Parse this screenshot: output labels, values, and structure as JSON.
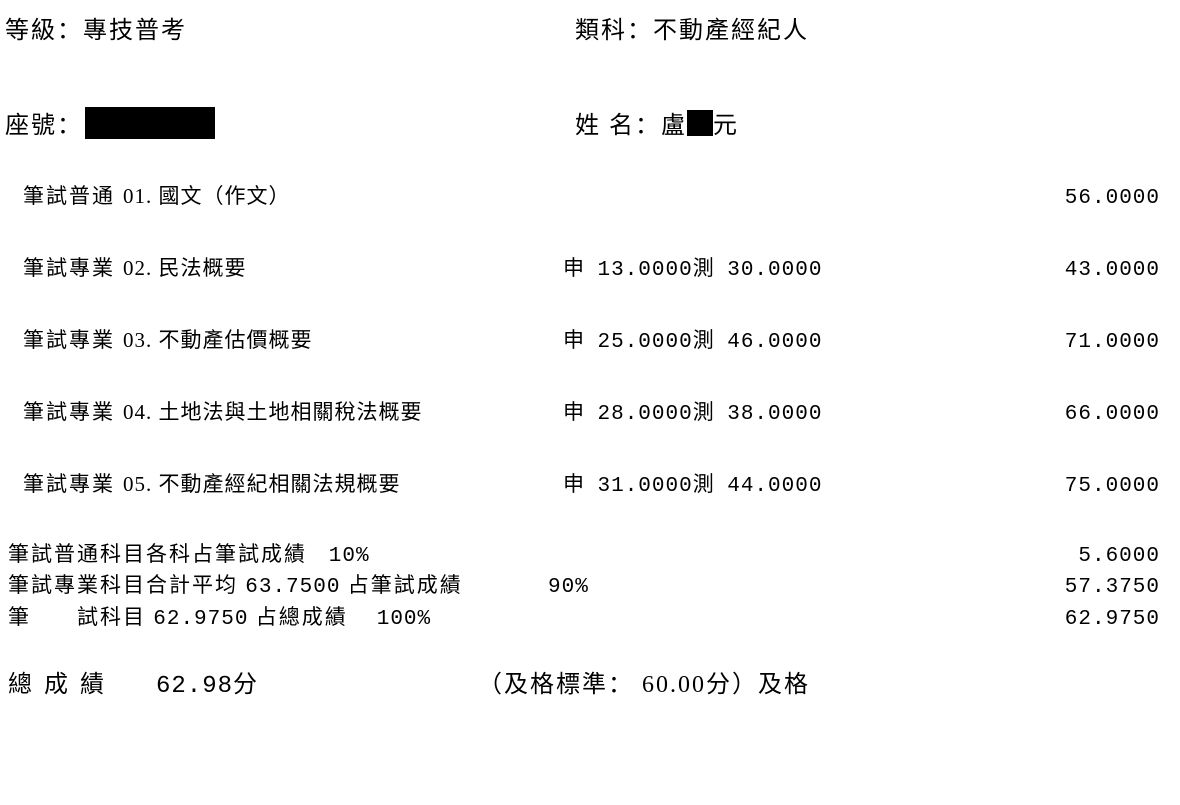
{
  "header": {
    "level_label": "等級：",
    "level_value": "專技普考",
    "category_label": "類科：",
    "category_value": "不動產經紀人"
  },
  "info": {
    "seat_label": "座號：",
    "name_label": "姓 名：",
    "name_surname": "盧",
    "name_given": "元"
  },
  "subjects": [
    {
      "category": "筆試普通",
      "code_name": "01. 國文（作文）",
      "shen_label": "",
      "shen_score": "",
      "ce_label": "",
      "ce_score": "",
      "total": "56.0000"
    },
    {
      "category": "筆試專業",
      "code_name": "02. 民法概要",
      "shen_label": "申",
      "shen_score": "13.0000",
      "ce_label": "測",
      "ce_score": "30.0000",
      "total": "43.0000"
    },
    {
      "category": "筆試專業",
      "code_name": "03. 不動產估價概要",
      "shen_label": "申",
      "shen_score": "25.0000",
      "ce_label": "測",
      "ce_score": "46.0000",
      "total": "71.0000"
    },
    {
      "category": "筆試專業",
      "code_name": "04. 土地法與土地相關稅法概要",
      "shen_label": "申",
      "shen_score": "28.0000",
      "ce_label": "測",
      "ce_score": "38.0000",
      "total": "66.0000"
    },
    {
      "category": "筆試專業",
      "code_name": "05. 不動產經紀相關法規概要",
      "shen_label": "申",
      "shen_score": "31.0000",
      "ce_label": "測",
      "ce_score": "44.0000",
      "total": "75.0000"
    }
  ],
  "calc": {
    "line1_label": "筆試普通科目各科占筆試成績",
    "line1_pct": "10%",
    "line1_val": "5.6000",
    "line2_label_a": "筆試專業科目合計平均",
    "line2_avg": "63.7500",
    "line2_label_b": "占筆試成績",
    "line2_pct": "90%",
    "line2_val": "57.3750",
    "line3_label_a": "筆　　試科目",
    "line3_score": "62.9750",
    "line3_label_b": "占總成績",
    "line3_pct": "100%",
    "line3_val": "62.9750"
  },
  "final": {
    "total_label": "總成績",
    "total_value": "62.98分",
    "pass_standard": "（及格標準： 60.00分）及格"
  }
}
